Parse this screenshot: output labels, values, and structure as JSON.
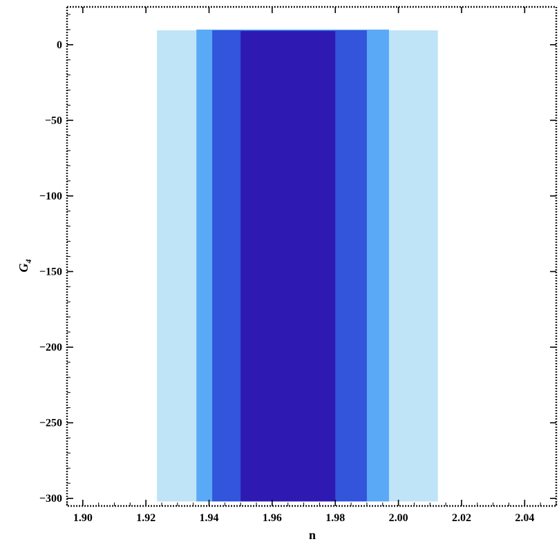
{
  "chart_data": {
    "type": "area",
    "title": "",
    "xlabel": "n",
    "ylabel": "G",
    "ylabel_subscript": "4",
    "xlim": [
      1.895,
      2.05
    ],
    "ylim": [
      -305,
      25
    ],
    "xticks": [
      1.9,
      1.92,
      1.94,
      1.96,
      1.98,
      2.0,
      2.02,
      2.04
    ],
    "xtick_labels": [
      "1.90",
      "1.92",
      "1.94",
      "1.96",
      "1.98",
      "2.00",
      "2.02",
      "2.04"
    ],
    "yticks": [
      0,
      -50,
      -100,
      -150,
      -200,
      -250,
      -300
    ],
    "ytick_labels": [
      "0",
      "−50",
      "−100",
      "−150",
      "−200",
      "−250",
      "−300"
    ],
    "grid": false,
    "regions": [
      {
        "x": [
          1.9235,
          2.0125
        ],
        "y": [
          -302,
          9.5
        ],
        "color": "#bfe3f7"
      },
      {
        "x": [
          1.936,
          1.997
        ],
        "y": [
          -302,
          10
        ],
        "color": "#5aa9f7"
      },
      {
        "x": [
          1.941,
          1.99
        ],
        "y": [
          -302,
          9.5
        ],
        "color": "#3255dc"
      },
      {
        "x": [
          1.95,
          1.98
        ],
        "y": [
          -302,
          9
        ],
        "color": "#2e1ab2"
      }
    ]
  }
}
